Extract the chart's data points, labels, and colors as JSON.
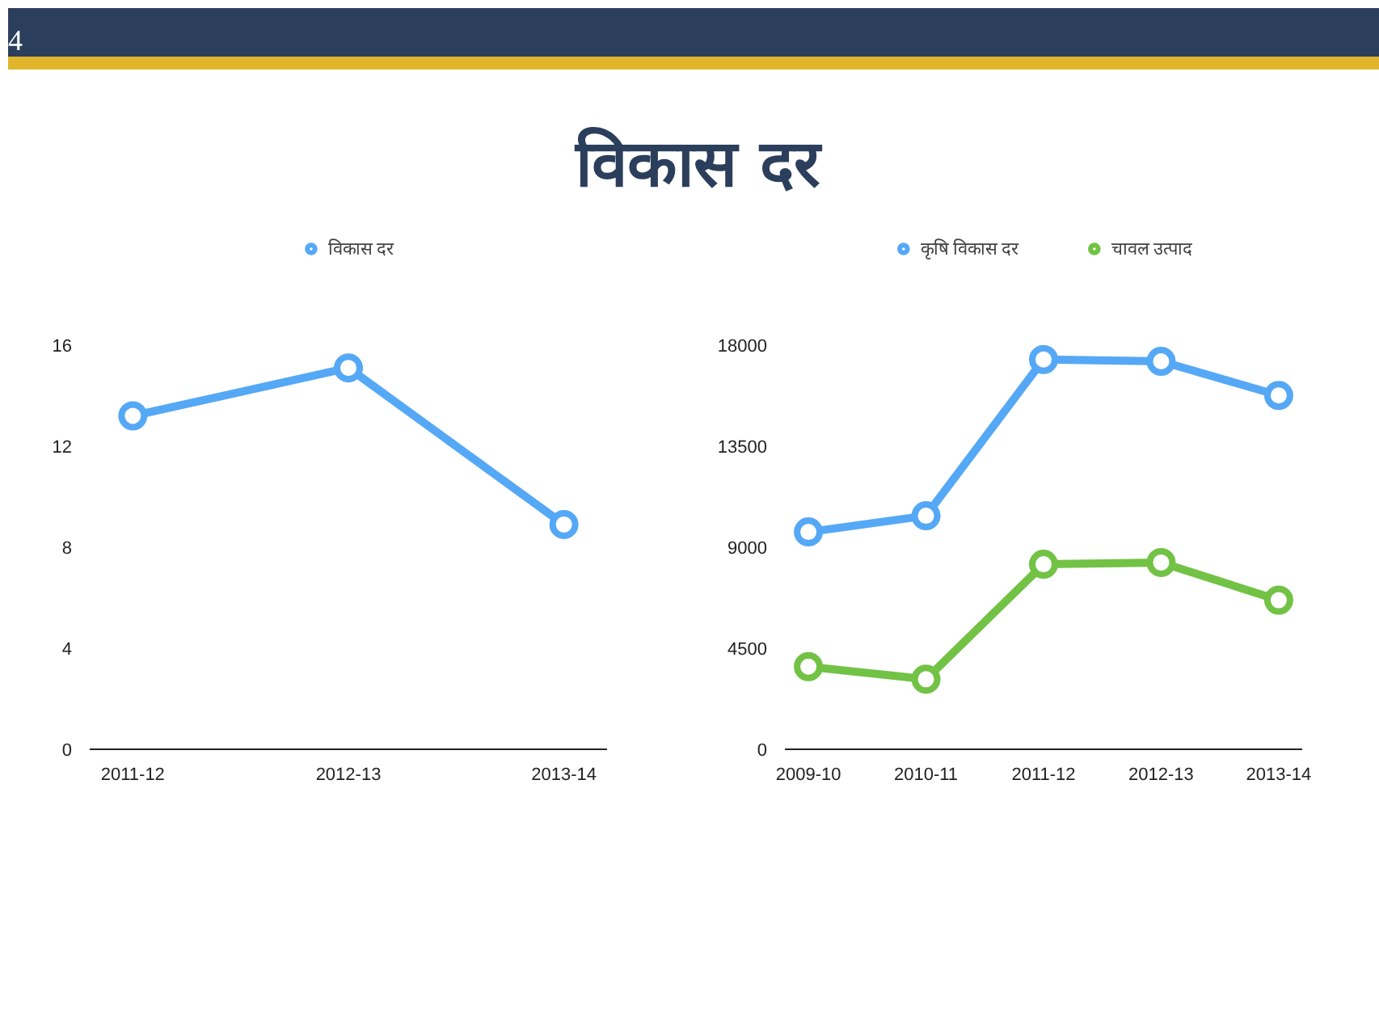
{
  "chart_data": [
    {
      "type": "other",
      "title": "विकास दर",
      "annotations": [
        "4"
      ]
    },
    {
      "type": "line",
      "categories": [
        "2011-12",
        "2012-13",
        "2013-14"
      ],
      "series": [
        {
          "name": "विकास दर",
          "color": "#55a8f5",
          "values": [
            13.2,
            15.1,
            8.9
          ]
        }
      ],
      "ylim": [
        0,
        16
      ],
      "yticks": [
        0,
        4,
        8,
        12,
        16
      ],
      "grid": false,
      "legend": "top",
      "marker": "circle",
      "line_style": "solid"
    },
    {
      "type": "line",
      "categories": [
        "2009-10",
        "2010-11",
        "2011-12",
        "2012-13",
        "2013-14"
      ],
      "series": [
        {
          "name": "कृषि विकास दर",
          "color": "#55a8f5",
          "values": [
            9680,
            10400,
            17360,
            17280,
            15760
          ]
        },
        {
          "name": "चावल उत्पाद",
          "color": "#72c245",
          "values": [
            3680,
            3120,
            8240,
            8320,
            6640
          ]
        }
      ],
      "ylim": [
        0,
        18000
      ],
      "yticks": [
        0,
        4500,
        9000,
        13500,
        18000
      ],
      "grid": false,
      "legend": "top",
      "marker": "circle",
      "line_style": "solid"
    }
  ]
}
